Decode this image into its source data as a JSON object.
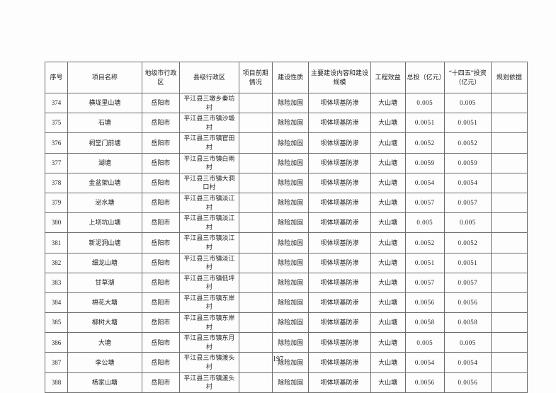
{
  "page": {
    "number": "197"
  },
  "table": {
    "columns": [
      "序号",
      "项目名称",
      "地级市行政区",
      "县级行政区",
      "项目前期情况",
      "建设性质",
      "主要建设内容和建设规模",
      "工程效益",
      "总投（亿元）",
      "“十四五”投资（亿元）",
      "规划依据"
    ],
    "rows": [
      [
        "374",
        "横垅里山塘",
        "岳阳市",
        "平江县三墩乡秦坊村",
        "",
        "除险加固",
        "坝体坝基防渗",
        "大山塘",
        "0.005",
        "0.005",
        ""
      ],
      [
        "375",
        "石塘",
        "岳阳市",
        "平江县三市镇沙塅村",
        "",
        "除险加固",
        "坝体坝基防渗",
        "大山塘",
        "0.0051",
        "0.0051",
        ""
      ],
      [
        "376",
        "祠堂门前塘",
        "岳阳市",
        "平江县三市镇官田村",
        "",
        "除险加固",
        "坝体坝基防渗",
        "大山塘",
        "0.0052",
        "0.0052",
        ""
      ],
      [
        "377",
        "湖塘",
        "岳阳市",
        "平江县三市镇白雨村",
        "",
        "除险加固",
        "坝体坝基防渗",
        "大山塘",
        "0.0059",
        "0.0059",
        ""
      ],
      [
        "378",
        "金盆架山塘",
        "岳阳市",
        "平江县三市镇大洞口村",
        "",
        "除险加固",
        "坝体坝基防渗",
        "大山塘",
        "0.0054",
        "0.0054",
        ""
      ],
      [
        "379",
        "泌水塘",
        "岳阳市",
        "平江县三市镇淡江村",
        "",
        "除险加固",
        "坝体坝基防渗",
        "大山塘",
        "0.0057",
        "0.0057",
        ""
      ],
      [
        "380",
        "上坝坑山塘",
        "岳阳市",
        "平江县三市镇淡江村",
        "",
        "除险加固",
        "坝体坝基防渗",
        "大山塘",
        "0.005",
        "0.005",
        ""
      ],
      [
        "381",
        "新泥洞山塘",
        "岳阳市",
        "平江县三市镇淡江村",
        "",
        "除险加固",
        "坝体坝基防渗",
        "大山塘",
        "0.0052",
        "0.0052",
        ""
      ],
      [
        "382",
        "细龙山塘",
        "岳阳市",
        "平江县三市镇淡江村",
        "",
        "除险加固",
        "坝体坝基防渗",
        "大山塘",
        "0.0051",
        "0.0051",
        ""
      ],
      [
        "383",
        "甘草湖",
        "岳阳市",
        "平江县三市镇低坪村",
        "",
        "除险加固",
        "坝体坝基防渗",
        "大山塘",
        "0.0057",
        "0.0057",
        ""
      ],
      [
        "384",
        "棉花大塘",
        "岳阳市",
        "平江县三市镇东岸村",
        "",
        "除险加固",
        "坝体坝基防渗",
        "大山塘",
        "0.0056",
        "0.0056",
        ""
      ],
      [
        "385",
        "柳树大塘",
        "岳阳市",
        "平江县三市镇东岸村",
        "",
        "除险加固",
        "坝体坝基防渗",
        "大山塘",
        "0.0058",
        "0.0058",
        ""
      ],
      [
        "386",
        "大塘",
        "岳阳市",
        "平江县三市镇东月村",
        "",
        "除险加固",
        "坝体坝基防渗",
        "大山塘",
        "0.005",
        "0.005",
        ""
      ],
      [
        "387",
        "李公塘",
        "岳阳市",
        "平江县三市镇渡头村",
        "",
        "除险加固",
        "坝体坝基防渗",
        "大山塘",
        "0.0054",
        "0.0054",
        ""
      ],
      [
        "388",
        "杨家山塘",
        "岳阳市",
        "平江县三市镇渡头村",
        "",
        "除险加固",
        "坝体坝基防渗",
        "大山塘",
        "0.0056",
        "0.0056",
        ""
      ]
    ]
  }
}
